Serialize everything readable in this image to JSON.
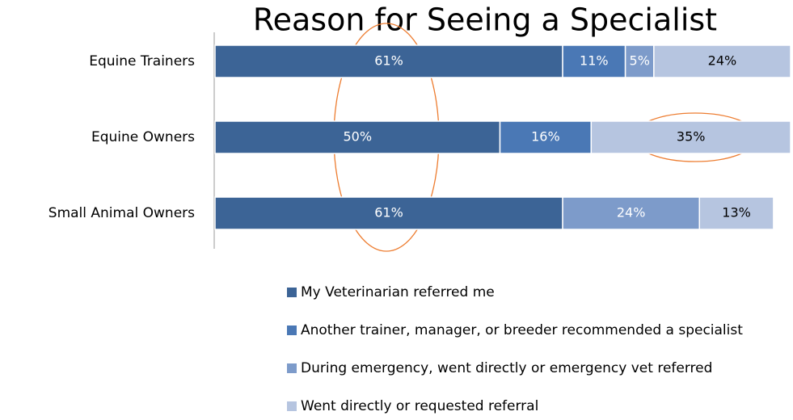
{
  "chart_data": {
    "type": "stacked-bar-horizontal",
    "title": "Reason for Seeing a Specialist",
    "categories": [
      "Equine Trainers",
      "Equine Owners",
      "Small Animal Owners"
    ],
    "series": [
      {
        "name": "My Veterinarian referred me",
        "color": "#3c6496",
        "values": [
          61,
          50,
          61
        ],
        "value_labels": [
          "61%",
          "50%",
          "61%"
        ]
      },
      {
        "name": "Another trainer, manager, or breeder recommended a specialist",
        "color": "#4a78b5",
        "values": [
          11,
          16,
          null
        ],
        "value_labels": [
          "11%",
          "16%",
          null
        ]
      },
      {
        "name": "During emergency, went directly or emergency vet referred",
        "color": "#7d9bca",
        "values": [
          5,
          null,
          24
        ],
        "value_labels": [
          "5%",
          null,
          "24%"
        ]
      },
      {
        "name": "Went directly or requested referral",
        "color": "#b6c5e0",
        "values": [
          24,
          35,
          13
        ],
        "value_labels": [
          "24%",
          "35%",
          "13%"
        ]
      }
    ]
  }
}
